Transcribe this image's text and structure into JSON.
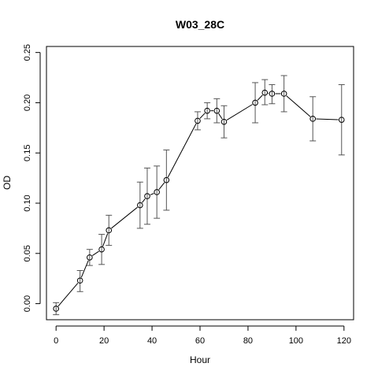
{
  "chart_data": {
    "type": "line",
    "title": "W03_28C",
    "xlabel": "Hour",
    "ylabel": "OD",
    "xlim": [
      -4,
      124
    ],
    "ylim": [
      -0.016,
      0.256
    ],
    "xticks": [
      0,
      20,
      40,
      60,
      80,
      100,
      120
    ],
    "yticks": [
      0.0,
      0.05,
      0.1,
      0.15,
      0.2,
      0.25
    ],
    "xtick_labels": [
      "0",
      "20",
      "40",
      "60",
      "80",
      "100",
      "120"
    ],
    "ytick_labels": [
      "0.00",
      "0.05",
      "0.10",
      "0.15",
      "0.20",
      "0.25"
    ],
    "grid": false,
    "marker": "open-circle",
    "error_bars": true,
    "points": [
      {
        "x": 0,
        "y": -0.005,
        "lo": -0.011,
        "hi": 0.001
      },
      {
        "x": 10,
        "y": 0.023,
        "lo": 0.012,
        "hi": 0.033
      },
      {
        "x": 14,
        "y": 0.046,
        "lo": 0.038,
        "hi": 0.054
      },
      {
        "x": 19,
        "y": 0.054,
        "lo": 0.039,
        "hi": 0.069
      },
      {
        "x": 22,
        "y": 0.073,
        "lo": 0.058,
        "hi": 0.088
      },
      {
        "x": 35,
        "y": 0.098,
        "lo": 0.075,
        "hi": 0.121
      },
      {
        "x": 38,
        "y": 0.107,
        "lo": 0.079,
        "hi": 0.135
      },
      {
        "x": 42,
        "y": 0.111,
        "lo": 0.085,
        "hi": 0.137
      },
      {
        "x": 46,
        "y": 0.123,
        "lo": 0.093,
        "hi": 0.153
      },
      {
        "x": 59,
        "y": 0.182,
        "lo": 0.173,
        "hi": 0.191
      },
      {
        "x": 63,
        "y": 0.192,
        "lo": 0.184,
        "hi": 0.2
      },
      {
        "x": 67,
        "y": 0.192,
        "lo": 0.18,
        "hi": 0.204
      },
      {
        "x": 70,
        "y": 0.181,
        "lo": 0.165,
        "hi": 0.197
      },
      {
        "x": 83,
        "y": 0.2,
        "lo": 0.18,
        "hi": 0.22
      },
      {
        "x": 87,
        "y": 0.21,
        "lo": 0.198,
        "hi": 0.223
      },
      {
        "x": 90,
        "y": 0.209,
        "lo": 0.199,
        "hi": 0.218
      },
      {
        "x": 95,
        "y": 0.209,
        "lo": 0.191,
        "hi": 0.227
      },
      {
        "x": 107,
        "y": 0.184,
        "lo": 0.162,
        "hi": 0.206
      },
      {
        "x": 119,
        "y": 0.183,
        "lo": 0.148,
        "hi": 0.218
      }
    ],
    "colors": {
      "line": "#000000",
      "error_bar": "#555555",
      "axis": "#000000"
    }
  }
}
